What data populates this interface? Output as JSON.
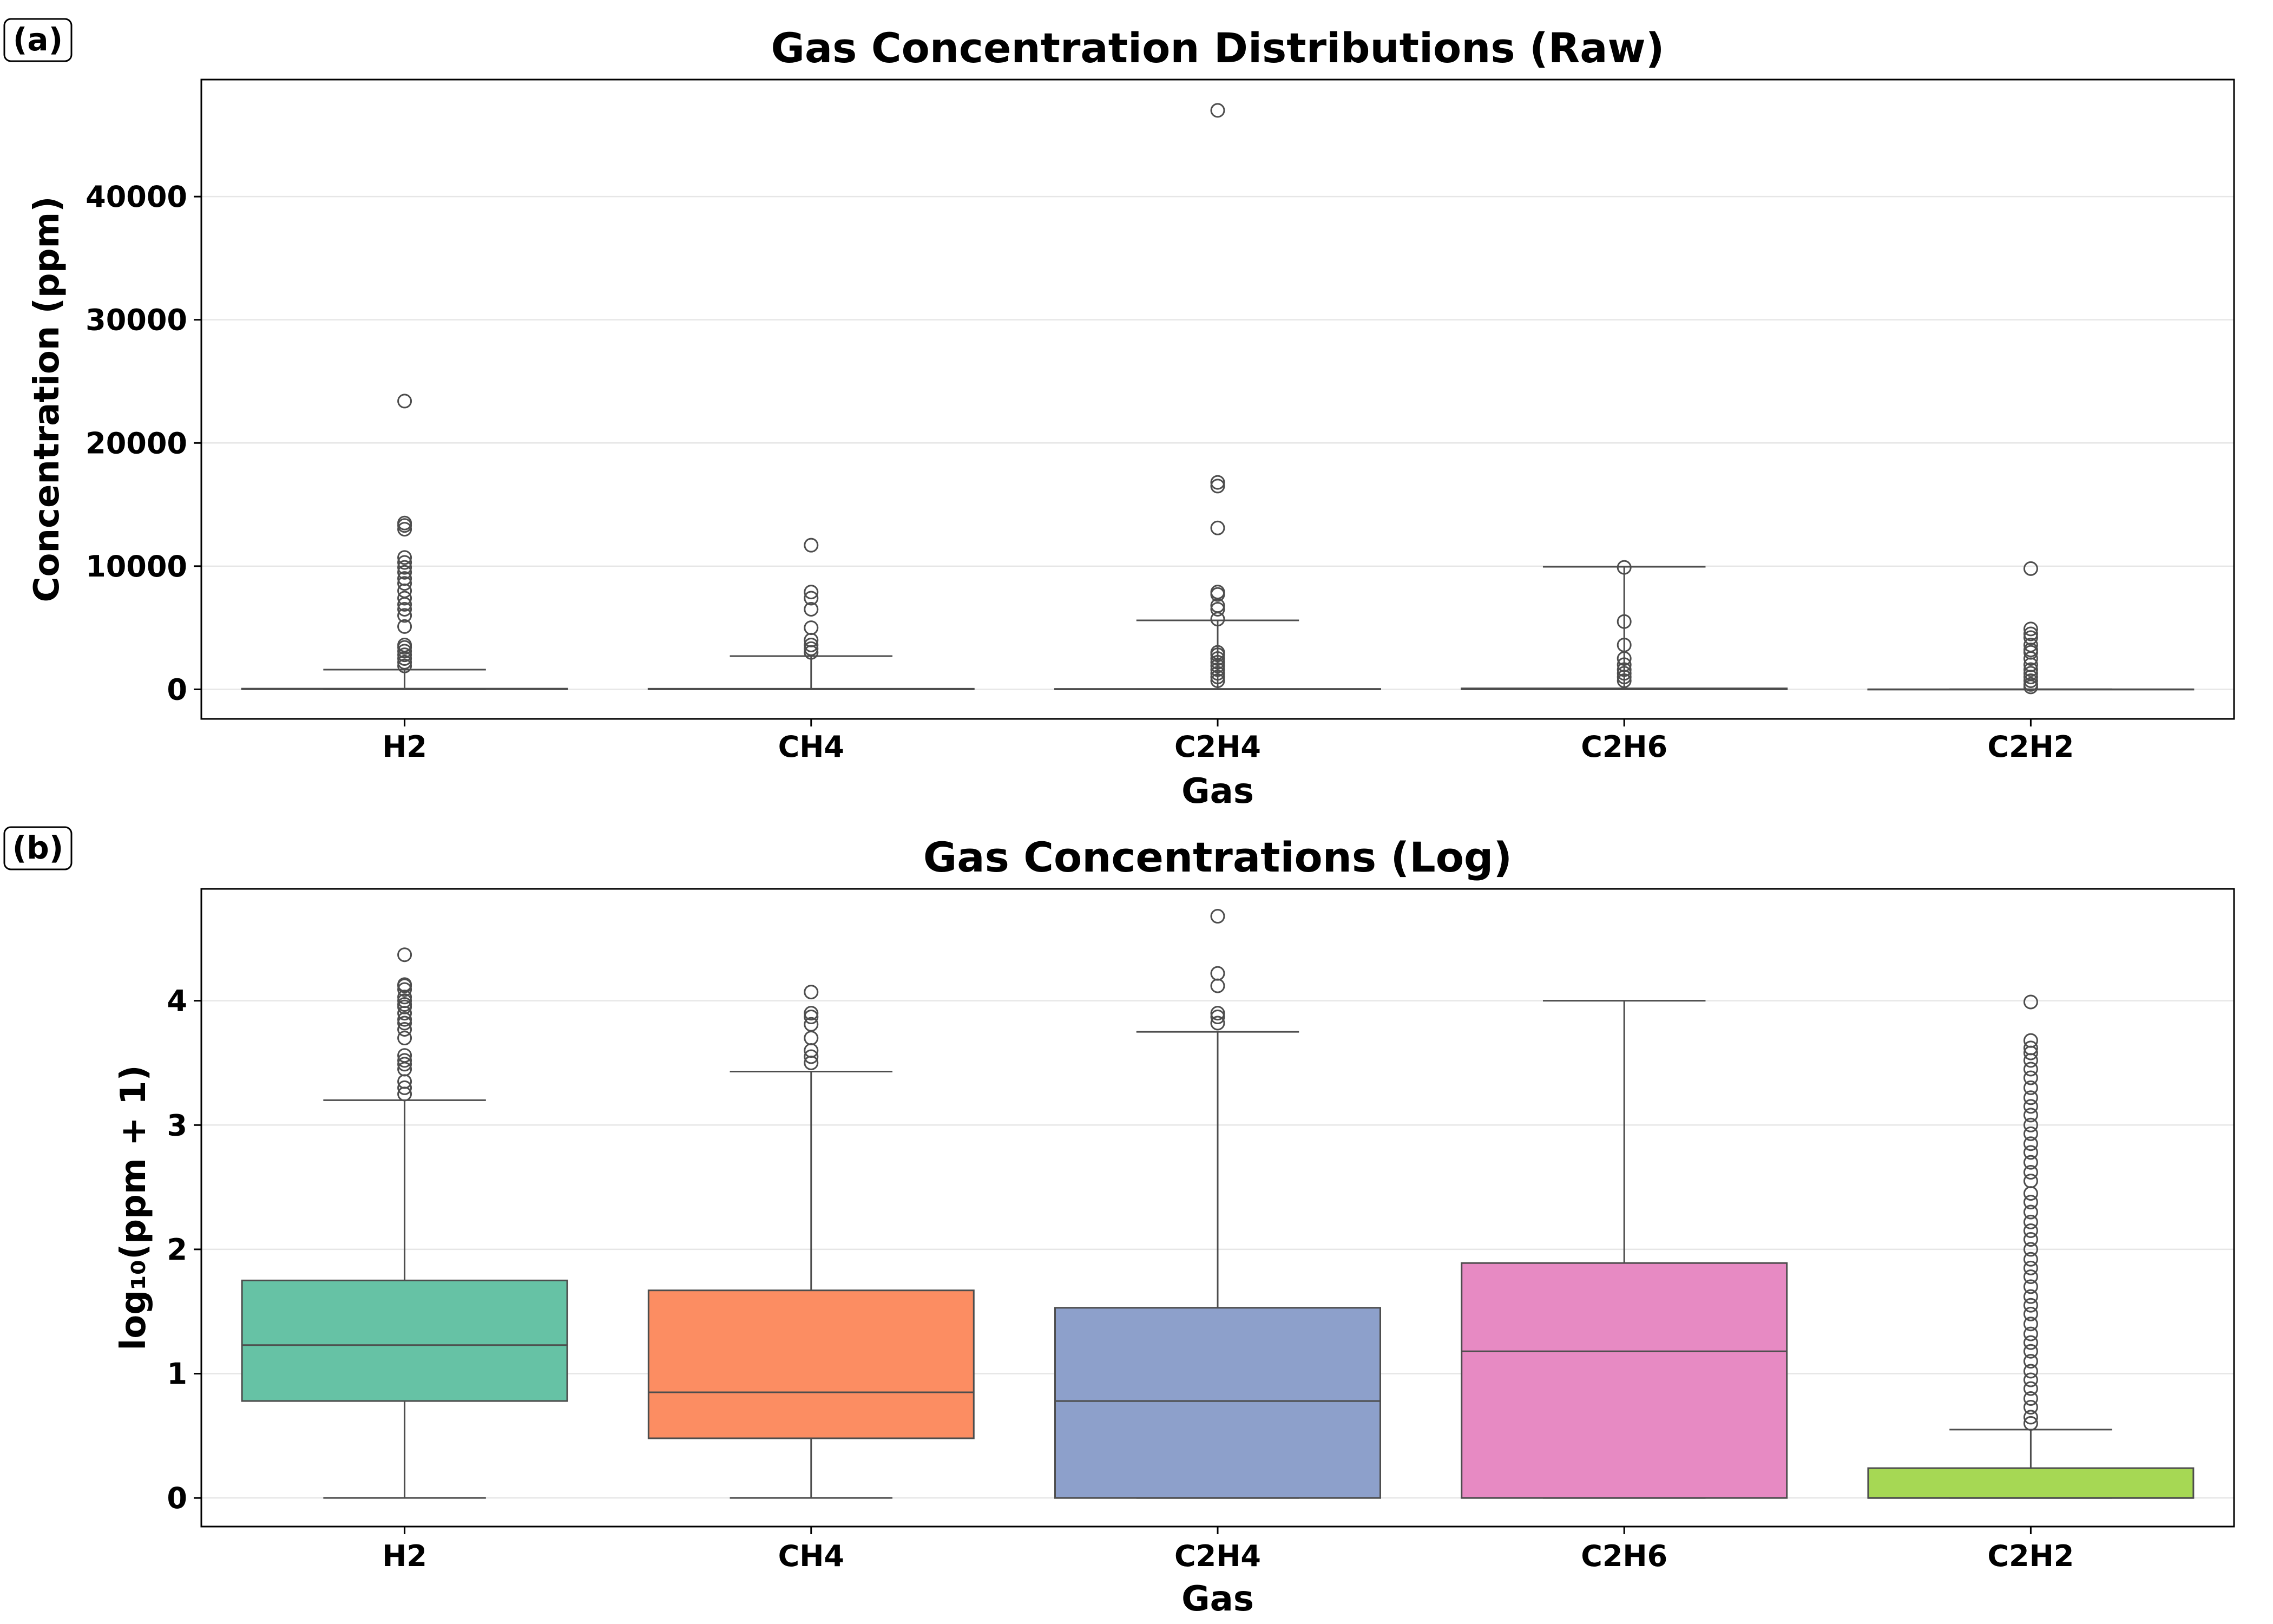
{
  "chart_data": [
    {
      "panel_label": "(a)",
      "type": "box",
      "title": "Gas Concentration Distributions (Raw)",
      "xlabel": "Gas",
      "ylabel": "Concentration (ppm)",
      "categories": [
        "H2",
        "CH4",
        "C2H4",
        "C2H6",
        "C2H2"
      ],
      "ylim": [
        -2400,
        49500
      ],
      "yticks": [
        0,
        10000,
        20000,
        30000,
        40000
      ],
      "grid": "y",
      "legend": "none",
      "colors": [
        "#66c2a5",
        "#fc8d62",
        "#8da0cb",
        "#e78ac3",
        "#a6d854"
      ],
      "boxes": [
        {
          "q1": 5,
          "median": 16,
          "q3": 55,
          "whisker_low": 0,
          "whisker_high": 1600,
          "outliers": [
            23400,
            13500,
            13300,
            13000,
            10700,
            10300,
            9900,
            9500,
            9000,
            8600,
            8000,
            7400,
            6900,
            6500,
            6000,
            5100,
            3600,
            3400,
            3100,
            2800,
            2500,
            2200,
            1900
          ]
        },
        {
          "q1": 2,
          "median": 6,
          "q3": 46,
          "whisker_low": 0,
          "whisker_high": 2700,
          "outliers": [
            11700,
            7900,
            7400,
            6500,
            5000,
            4000,
            3600,
            3300,
            3000
          ]
        },
        {
          "q1": 0,
          "median": 5,
          "q3": 33,
          "whisker_low": 0,
          "whisker_high": 5600,
          "outliers": [
            47000,
            16800,
            16500,
            13100,
            7900,
            7700,
            6800,
            6500,
            5700,
            3000,
            2800,
            2500,
            2200,
            1900,
            1600,
            1300,
            1000,
            700
          ]
        },
        {
          "q1": 0,
          "median": 14,
          "q3": 77,
          "whisker_low": 0,
          "whisker_high": 9950,
          "outliers": [
            9900,
            5500,
            3600,
            2500,
            2000,
            1600,
            1300,
            1000,
            700
          ]
        },
        {
          "q1": 0,
          "median": 0,
          "q3": 0.7,
          "whisker_low": 0,
          "whisker_high": 2.5,
          "outliers": [
            9800,
            4900,
            4500,
            4200,
            3600,
            3200,
            3000,
            2500,
            2000,
            1600,
            1300,
            1000,
            700,
            400,
            200
          ]
        }
      ]
    },
    {
      "panel_label": "(b)",
      "type": "box",
      "title": "Gas Concentrations (Log)",
      "xlabel": "Gas",
      "ylabel": "log₁₀(ppm + 1)",
      "categories": [
        "H2",
        "CH4",
        "C2H4",
        "C2H6",
        "C2H2"
      ],
      "ylim": [
        -0.23,
        4.9
      ],
      "yticks": [
        0,
        1,
        2,
        3,
        4
      ],
      "grid": "y",
      "legend": "none",
      "colors": [
        "#66c2a5",
        "#fc8d62",
        "#8da0cb",
        "#e78ac3",
        "#a6d854"
      ],
      "boxes": [
        {
          "q1": 0.78,
          "median": 1.23,
          "q3": 1.75,
          "whisker_low": 0,
          "whisker_high": 3.2,
          "outliers": [
            4.37,
            4.13,
            4.12,
            4.09,
            4.03,
            4.0,
            3.97,
            3.95,
            3.9,
            3.85,
            3.82,
            3.77,
            3.7,
            3.56,
            3.52,
            3.49,
            3.45,
            3.35,
            3.3,
            3.25
          ]
        },
        {
          "q1": 0.48,
          "median": 0.85,
          "q3": 1.67,
          "whisker_low": 0,
          "whisker_high": 3.43,
          "outliers": [
            4.07,
            3.9,
            3.87,
            3.81,
            3.7,
            3.6,
            3.55,
            3.5
          ]
        },
        {
          "q1": 0,
          "median": 0.78,
          "q3": 1.53,
          "whisker_low": 0,
          "whisker_high": 3.75,
          "outliers": [
            4.68,
            4.22,
            4.12,
            3.9,
            3.87,
            3.82
          ]
        },
        {
          "q1": 0,
          "median": 1.18,
          "q3": 1.89,
          "whisker_low": 0,
          "whisker_high": 4.0,
          "outliers": []
        },
        {
          "q1": 0,
          "median": 0,
          "q3": 0.24,
          "whisker_low": 0,
          "whisker_high": 0.55,
          "outliers": [
            3.99,
            3.68,
            3.62,
            3.58,
            3.52,
            3.45,
            3.38,
            3.3,
            3.22,
            3.15,
            3.08,
            3.0,
            2.93,
            2.85,
            2.78,
            2.7,
            2.62,
            2.55,
            2.45,
            2.38,
            2.3,
            2.22,
            2.15,
            2.08,
            2.0,
            1.92,
            1.85,
            1.78,
            1.7,
            1.62,
            1.55,
            1.48,
            1.4,
            1.32,
            1.25,
            1.18,
            1.1,
            1.02,
            0.95,
            0.88,
            0.8,
            0.73,
            0.65,
            0.6
          ]
        }
      ]
    }
  ]
}
